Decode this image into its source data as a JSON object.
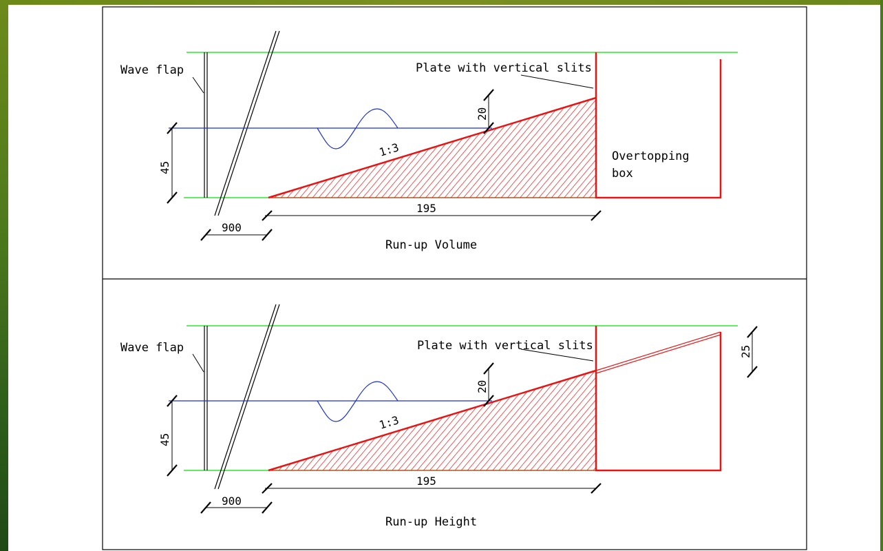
{
  "panels": [
    {
      "wave_flap_label": "Wave flap",
      "plate_label": "Plate with vertical slits",
      "box_label_line1": "Overtopping",
      "box_label_line2": "box",
      "depth_dim": "45",
      "crest_dim": "20",
      "slope_label": "1:3",
      "length_dim": "195",
      "distance_dim": "900",
      "caption": "Run-up Volume"
    },
    {
      "wave_flap_label": "Wave flap",
      "plate_label": "Plate with vertical slits",
      "depth_dim": "45",
      "crest_dim": "20",
      "slope_label": "1:3",
      "length_dim": "195",
      "distance_dim": "900",
      "extra_dim": "25",
      "caption": "Run-up Height"
    }
  ],
  "colors": {
    "water_line": "#1a2fd6",
    "bed_line": "#2ee62e",
    "slope": "#e81414",
    "box": "#e81414",
    "frame": "#000000"
  }
}
